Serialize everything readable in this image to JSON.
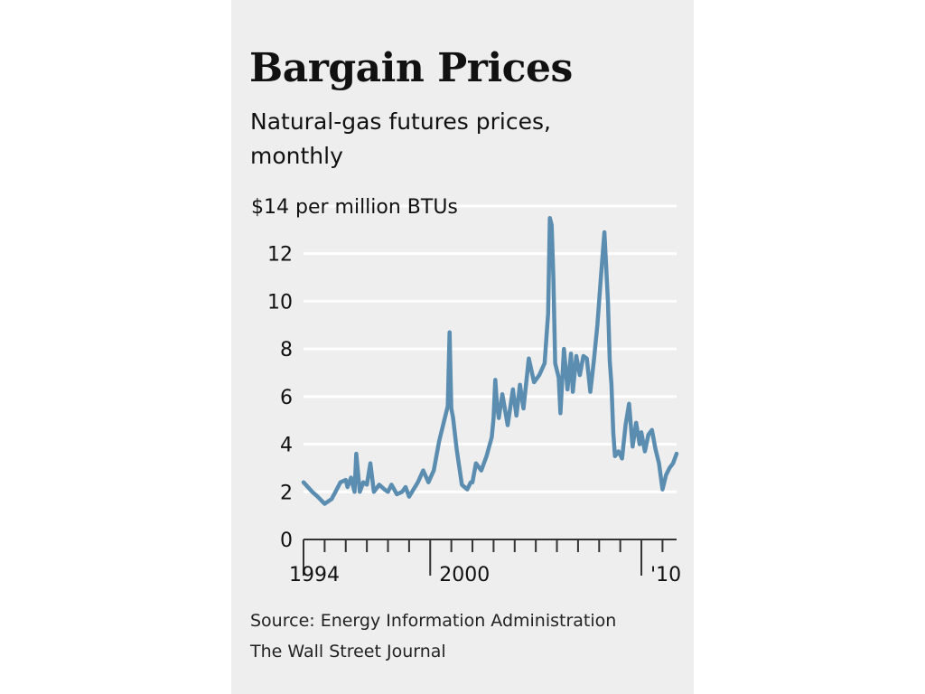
{
  "header": {
    "title": "Bargain Prices",
    "subtitle": "Natural-gas futures prices, monthly"
  },
  "footer": {
    "source": "Source: Energy Information Administration",
    "credit": "The Wall Street Journal"
  },
  "colors": {
    "line": "#5b8db0",
    "background": "#eeeeee",
    "grid": "#ffffff"
  },
  "chart_data": {
    "type": "line",
    "title": "Bargain Prices",
    "subtitle": "Natural-gas futures prices, monthly",
    "ylabel": "$14 per million BTUs",
    "ylim": [
      0,
      14
    ],
    "yticks": [
      0,
      2,
      4,
      6,
      8,
      10,
      12,
      14
    ],
    "ytick_labels": [
      "0",
      "2",
      "4",
      "6",
      "8",
      "10",
      "12",
      "$14 per million BTUs"
    ],
    "xlim": [
      "1994-01",
      "2011-09"
    ],
    "xtick_labels": [
      {
        "label": "1994",
        "at": "1994-01"
      },
      {
        "label": "2000",
        "at": "2000-01"
      },
      {
        "label": "'10",
        "at": "2010-01"
      }
    ],
    "grid": true,
    "series": [
      {
        "x": [
          "1994-01",
          "1994-06",
          "1994-09",
          "1995-01",
          "1995-05",
          "1995-10",
          "1996-01",
          "1996-02",
          "1996-04",
          "1996-06",
          "1996-07",
          "1996-09",
          "1996-11",
          "1997-01",
          "1997-03",
          "1997-05",
          "1997-08",
          "1997-11",
          "1998-01",
          "1998-03",
          "1998-06",
          "1998-09",
          "1998-11",
          "1999-01",
          "1999-06",
          "1999-09",
          "1999-12",
          "2000-03",
          "2000-06",
          "2000-09",
          "2000-11",
          "2000-12",
          "2001-01",
          "2001-02",
          "2001-04",
          "2001-07",
          "2001-10",
          "2001-12",
          "2002-01",
          "2002-03",
          "2002-06",
          "2002-09",
          "2002-12",
          "2003-01",
          "2003-02",
          "2003-03",
          "2003-04",
          "2003-06",
          "2003-09",
          "2003-12",
          "2004-02",
          "2004-04",
          "2004-06",
          "2004-09",
          "2004-12",
          "2005-03",
          "2005-06",
          "2005-08",
          "2005-09",
          "2005-10",
          "2005-11",
          "2005-12",
          "2006-01",
          "2006-02",
          "2006-03",
          "2006-05",
          "2006-07",
          "2006-09",
          "2006-10",
          "2006-12",
          "2007-02",
          "2007-04",
          "2007-06",
          "2007-08",
          "2007-10",
          "2007-12",
          "2008-02",
          "2008-04",
          "2008-06",
          "2008-07",
          "2008-08",
          "2008-09",
          "2008-10",
          "2008-12",
          "2009-02",
          "2009-04",
          "2009-06",
          "2009-08",
          "2009-10",
          "2009-12",
          "2010-01",
          "2010-03",
          "2010-05",
          "2010-07",
          "2010-09",
          "2010-11",
          "2011-01",
          "2011-03",
          "2011-05",
          "2011-07",
          "2011-09"
        ],
        "values": [
          2.4,
          2.0,
          1.8,
          1.5,
          1.7,
          2.4,
          2.5,
          2.2,
          2.6,
          2.0,
          3.6,
          2.0,
          2.4,
          2.3,
          3.2,
          2.0,
          2.3,
          2.1,
          2.0,
          2.3,
          1.9,
          2.0,
          2.2,
          1.8,
          2.4,
          2.9,
          2.4,
          2.9,
          4.1,
          5.0,
          5.6,
          8.7,
          5.5,
          5.1,
          3.8,
          2.3,
          2.1,
          2.4,
          2.4,
          3.2,
          2.9,
          3.5,
          4.3,
          5.1,
          6.7,
          5.6,
          5.1,
          6.1,
          4.8,
          6.3,
          5.2,
          6.5,
          5.5,
          7.6,
          6.6,
          6.9,
          7.4,
          9.5,
          13.5,
          13.2,
          11.0,
          7.4,
          7.1,
          6.8,
          5.3,
          8.0,
          6.3,
          7.8,
          6.2,
          7.7,
          6.9,
          7.7,
          7.6,
          6.2,
          7.5,
          9.0,
          11.0,
          12.9,
          10.0,
          7.5,
          6.5,
          4.5,
          3.5,
          3.7,
          3.4,
          4.8,
          5.7,
          3.9,
          4.9,
          4.0,
          4.5,
          3.7,
          4.4,
          4.6,
          3.8,
          3.2,
          2.1,
          2.7,
          3.0,
          3.2,
          3.6
        ]
      }
    ]
  }
}
